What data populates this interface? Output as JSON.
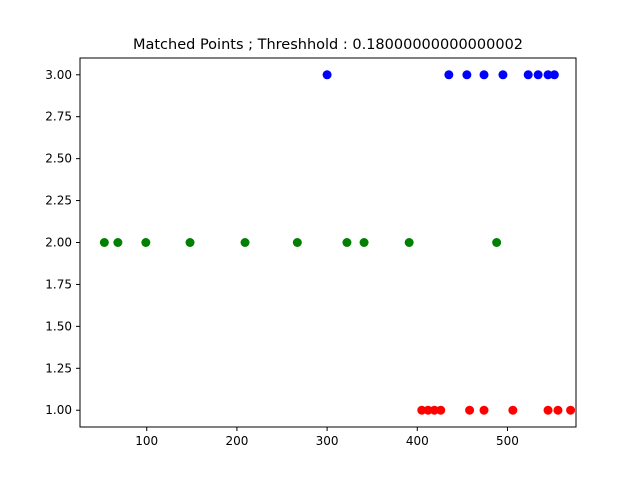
{
  "chart_data": {
    "type": "scatter",
    "title": "Matched Points ; Threshhold : 0.18000000000000002",
    "xlabel": "",
    "ylabel": "",
    "xlim": [
      26,
      576
    ],
    "ylim": [
      0.9,
      3.1
    ],
    "x_ticks": [
      100,
      200,
      300,
      400,
      500
    ],
    "x_tick_labels": [
      "100",
      "200",
      "300",
      "400",
      "500"
    ],
    "y_ticks": [
      1.0,
      1.25,
      1.5,
      1.75,
      2.0,
      2.25,
      2.5,
      2.75,
      3.0
    ],
    "y_tick_labels": [
      "1.00",
      "1.25",
      "1.50",
      "1.75",
      "2.00",
      "2.25",
      "2.50",
      "2.75",
      "3.00"
    ],
    "grid": false,
    "legend": "none",
    "series": [
      {
        "color": "#0000ff",
        "x": [
          300,
          435,
          455,
          474,
          495,
          523,
          534,
          545,
          552
        ],
        "y": [
          3,
          3,
          3,
          3,
          3,
          3,
          3,
          3,
          3
        ]
      },
      {
        "color": "#008000",
        "x": [
          53,
          68,
          99,
          148,
          209,
          267,
          322,
          341,
          391,
          488
        ],
        "y": [
          2,
          2,
          2,
          2,
          2,
          2,
          2,
          2,
          2,
          2
        ]
      },
      {
        "color": "#ff0000",
        "x": [
          405,
          412,
          419,
          426,
          458,
          474,
          506,
          545,
          556,
          570
        ],
        "y": [
          1,
          1,
          1,
          1,
          1,
          1,
          1,
          1,
          1,
          1
        ]
      }
    ]
  }
}
